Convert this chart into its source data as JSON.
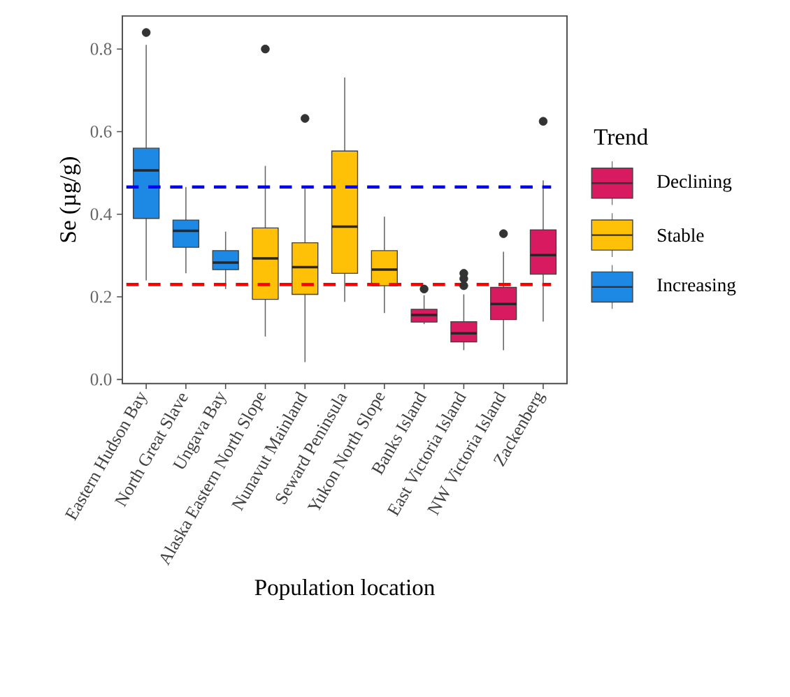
{
  "chart_data": {
    "type": "box",
    "xlabel": "Population location",
    "ylabel": "Se (µg/g)",
    "legend_title": "Trend",
    "legend": "right",
    "grid": false,
    "categories": [
      "Eastern Hudson Bay",
      "North Great Slave",
      "Ungava Bay",
      "Alaska Eastern North Slope",
      "Nunavut Mainland",
      "Seward Peninsula",
      "Yukon North Slope",
      "Banks Island",
      "East Victoria Island",
      "NW Victoria Island",
      "Zackenberg"
    ],
    "ylim": [
      -0.01,
      0.88
    ],
    "yticks": [
      {
        "value": 0,
        "label": "0.0"
      },
      {
        "value": 0.2,
        "label": "0.2"
      },
      {
        "value": 0.4,
        "label": "0.4"
      },
      {
        "value": 0.6,
        "label": "0.6"
      },
      {
        "value": 0.8,
        "label": "0.8"
      }
    ],
    "series": [
      {
        "name": "Declining",
        "color": "#d81b60",
        "boxes": [
          null,
          null,
          null,
          null,
          null,
          null,
          null,
          {
            "low": 0.134,
            "q1": 0.139,
            "median": 0.156,
            "q3": 0.17,
            "high": 0.204,
            "outliers": [
              0.219
            ]
          },
          {
            "low": 0.071,
            "q1": 0.091,
            "median": 0.112,
            "q3": 0.14,
            "high": 0.206,
            "outliers": [
              0.227,
              0.244,
              0.257
            ]
          },
          {
            "low": 0.071,
            "q1": 0.145,
            "median": 0.183,
            "q3": 0.223,
            "high": 0.309,
            "outliers": [
              0.353
            ]
          },
          {
            "low": 0.14,
            "q1": 0.255,
            "median": 0.301,
            "q3": 0.362,
            "high": 0.482,
            "outliers": [
              0.625
            ]
          }
        ]
      },
      {
        "name": "Stable",
        "color": "#ffc107",
        "boxes": [
          null,
          null,
          null,
          {
            "low": 0.104,
            "q1": 0.194,
            "median": 0.293,
            "q3": 0.367,
            "high": 0.517,
            "outliers": [
              0.8
            ]
          },
          {
            "low": 0.042,
            "q1": 0.206,
            "median": 0.272,
            "q3": 0.331,
            "high": 0.462,
            "outliers": [
              0.632
            ]
          },
          {
            "low": 0.188,
            "q1": 0.257,
            "median": 0.37,
            "q3": 0.553,
            "high": 0.731
          },
          {
            "low": 0.161,
            "q1": 0.227,
            "median": 0.266,
            "q3": 0.312,
            "high": 0.394
          },
          null,
          null,
          null,
          null
        ]
      },
      {
        "name": "Increasing",
        "color": "#1e88e5",
        "boxes": [
          {
            "low": 0.24,
            "q1": 0.39,
            "median": 0.506,
            "q3": 0.56,
            "high": 0.81,
            "outliers": [
              0.84
            ]
          },
          {
            "low": 0.257,
            "q1": 0.32,
            "median": 0.36,
            "q3": 0.386,
            "high": 0.466
          },
          {
            "low": 0.219,
            "q1": 0.266,
            "median": 0.283,
            "q3": 0.312,
            "high": 0.358
          },
          null,
          null,
          null,
          null,
          null,
          null,
          null,
          null
        ]
      }
    ],
    "ref_lines": [
      {
        "axis": "y",
        "value": 0.466,
        "color": "#0000ff",
        "line_style": "dashed"
      },
      {
        "axis": "y",
        "value": 0.23,
        "color": "#ff0000",
        "line_style": "dashed"
      }
    ]
  }
}
